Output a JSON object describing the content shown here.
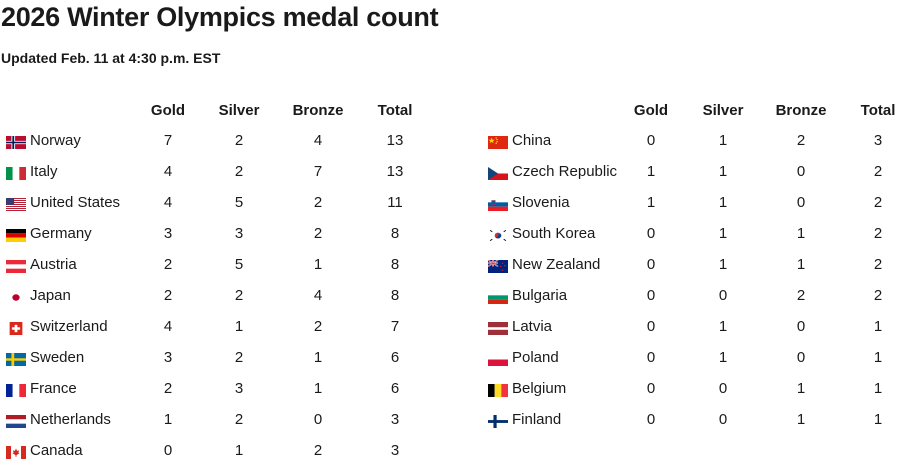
{
  "title": "2026 Winter Olympics medal count",
  "subtitle": "Updated Feb. 11 at 4:30 p.m. EST",
  "headers": {
    "gold": "Gold",
    "silver": "Silver",
    "bronze": "Bronze",
    "total": "Total"
  },
  "left": [
    {
      "country": "Norway",
      "flag": "norway-flag-icon",
      "gold": "7",
      "silver": "2",
      "bronze": "4",
      "total": "13"
    },
    {
      "country": "Italy",
      "flag": "italy-flag-icon",
      "gold": "4",
      "silver": "2",
      "bronze": "7",
      "total": "13"
    },
    {
      "country": "United States",
      "flag": "united-states-flag-icon",
      "gold": "4",
      "silver": "5",
      "bronze": "2",
      "total": "11"
    },
    {
      "country": "Germany",
      "flag": "germany-flag-icon",
      "gold": "3",
      "silver": "3",
      "bronze": "2",
      "total": "8"
    },
    {
      "country": "Austria",
      "flag": "austria-flag-icon",
      "gold": "2",
      "silver": "5",
      "bronze": "1",
      "total": "8"
    },
    {
      "country": "Japan",
      "flag": "japan-flag-icon",
      "gold": "2",
      "silver": "2",
      "bronze": "4",
      "total": "8"
    },
    {
      "country": "Switzerland",
      "flag": "switzerland-flag-icon",
      "gold": "4",
      "silver": "1",
      "bronze": "2",
      "total": "7"
    },
    {
      "country": "Sweden",
      "flag": "sweden-flag-icon",
      "gold": "3",
      "silver": "2",
      "bronze": "1",
      "total": "6"
    },
    {
      "country": "France",
      "flag": "france-flag-icon",
      "gold": "2",
      "silver": "3",
      "bronze": "1",
      "total": "6"
    },
    {
      "country": "Netherlands",
      "flag": "netherlands-flag-icon",
      "gold": "1",
      "silver": "2",
      "bronze": "0",
      "total": "3"
    },
    {
      "country": "Canada",
      "flag": "canada-flag-icon",
      "gold": "0",
      "silver": "1",
      "bronze": "2",
      "total": "3"
    }
  ],
  "right": [
    {
      "country": "China",
      "flag": "china-flag-icon",
      "gold": "0",
      "silver": "1",
      "bronze": "2",
      "total": "3"
    },
    {
      "country": "Czech Republic",
      "flag": "czech-republic-flag-icon",
      "gold": "1",
      "silver": "1",
      "bronze": "0",
      "total": "2"
    },
    {
      "country": "Slovenia",
      "flag": "slovenia-flag-icon",
      "gold": "1",
      "silver": "1",
      "bronze": "0",
      "total": "2"
    },
    {
      "country": "South Korea",
      "flag": "south-korea-flag-icon",
      "gold": "0",
      "silver": "1",
      "bronze": "1",
      "total": "2"
    },
    {
      "country": "New Zealand",
      "flag": "new-zealand-flag-icon",
      "gold": "0",
      "silver": "1",
      "bronze": "1",
      "total": "2"
    },
    {
      "country": "Bulgaria",
      "flag": "bulgaria-flag-icon",
      "gold": "0",
      "silver": "0",
      "bronze": "2",
      "total": "2"
    },
    {
      "country": "Latvia",
      "flag": "latvia-flag-icon",
      "gold": "0",
      "silver": "1",
      "bronze": "0",
      "total": "1"
    },
    {
      "country": "Poland",
      "flag": "poland-flag-icon",
      "gold": "0",
      "silver": "1",
      "bronze": "0",
      "total": "1"
    },
    {
      "country": "Belgium",
      "flag": "belgium-flag-icon",
      "gold": "0",
      "silver": "0",
      "bronze": "1",
      "total": "1"
    },
    {
      "country": "Finland",
      "flag": "finland-flag-icon",
      "gold": "0",
      "silver": "0",
      "bronze": "1",
      "total": "1"
    }
  ]
}
